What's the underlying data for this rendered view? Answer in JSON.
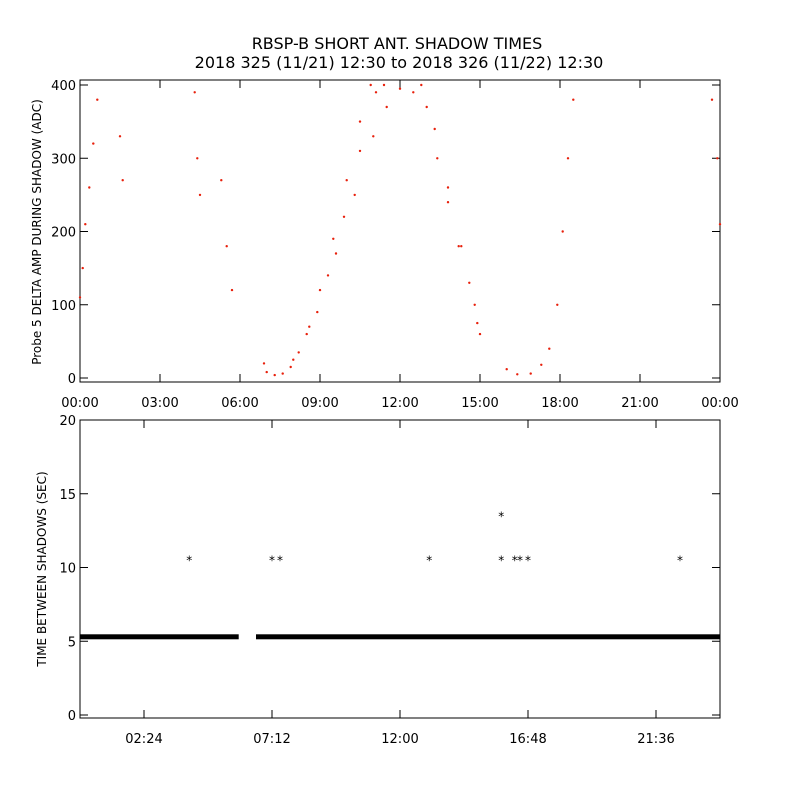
{
  "header": {
    "title_line1": "RBSP-B SHORT ANT. SHADOW TIMES",
    "title_line2": "2018 325 (11/21) 12:30 to 2018 326 (11/22) 12:30"
  },
  "colors": {
    "delta_amp_points": "#e8200c",
    "shadow_interval_marks": "#000000",
    "axes": "#000000"
  },
  "chart_data": [
    {
      "type": "scatter",
      "title": "",
      "xlabel": "",
      "ylabel": "Probe 5 DELTA AMP DURING SHADOW (ADC)",
      "xlim_hours": [
        0,
        24
      ],
      "ylim": [
        0,
        400
      ],
      "x_tick_labels": [
        "00:00",
        "03:00",
        "06:00",
        "09:00",
        "12:00",
        "15:00",
        "18:00",
        "21:00",
        "00:00"
      ],
      "y_tick_labels": [
        "0",
        "100",
        "200",
        "300",
        "400"
      ],
      "grid": false,
      "series": [
        {
          "values": [
            [
              0.0,
              110
            ],
            [
              0.1,
              150
            ],
            [
              0.2,
              210
            ],
            [
              0.35,
              260
            ],
            [
              0.5,
              320
            ],
            [
              0.65,
              380
            ],
            [
              1.5,
              330
            ],
            [
              1.6,
              270
            ],
            [
              4.3,
              390
            ],
            [
              4.4,
              300
            ],
            [
              4.5,
              250
            ],
            [
              5.3,
              270
            ],
            [
              5.5,
              180
            ],
            [
              5.7,
              120
            ],
            [
              6.9,
              20
            ],
            [
              7.0,
              8
            ],
            [
              7.3,
              4
            ],
            [
              7.6,
              6
            ],
            [
              8.0,
              25
            ],
            [
              8.5,
              60
            ],
            [
              9.0,
              120
            ],
            [
              9.5,
              190
            ],
            [
              10.0,
              270
            ],
            [
              10.5,
              350
            ],
            [
              10.9,
              400
            ],
            [
              7.9,
              15
            ],
            [
              8.6,
              70
            ],
            [
              9.3,
              140
            ],
            [
              9.9,
              220
            ],
            [
              10.5,
              310
            ],
            [
              11.1,
              390
            ],
            [
              8.2,
              35
            ],
            [
              8.9,
              90
            ],
            [
              9.6,
              170
            ],
            [
              10.3,
              250
            ],
            [
              11.0,
              330
            ],
            [
              11.4,
              400
            ],
            [
              11.5,
              370
            ],
            [
              12.0,
              395
            ],
            [
              12.5,
              390
            ],
            [
              13.0,
              370
            ],
            [
              13.4,
              300
            ],
            [
              13.8,
              240
            ],
            [
              14.2,
              180
            ],
            [
              14.6,
              130
            ],
            [
              14.9,
              75
            ],
            [
              12.8,
              400
            ],
            [
              13.3,
              340
            ],
            [
              13.8,
              260
            ],
            [
              14.3,
              180
            ],
            [
              14.8,
              100
            ],
            [
              15.0,
              60
            ],
            [
              16.0,
              12
            ],
            [
              16.4,
              5
            ],
            [
              16.9,
              6
            ],
            [
              17.3,
              18
            ],
            [
              17.6,
              40
            ],
            [
              17.9,
              100
            ],
            [
              18.1,
              200
            ],
            [
              18.3,
              300
            ],
            [
              18.5,
              380
            ],
            [
              23.7,
              380
            ],
            [
              23.9,
              300
            ],
            [
              24.0,
              210
            ]
          ]
        }
      ]
    },
    {
      "type": "scatter",
      "title": "",
      "xlabel": "",
      "ylabel": "TIME BETWEEN SHADOWS (SEC)",
      "xlim_hours": [
        0,
        24
      ],
      "ylim": [
        0,
        20
      ],
      "x_tick_labels": [
        "02:24",
        "07:12",
        "12:00",
        "16:48",
        "21:36"
      ],
      "y_tick_labels": [
        "0",
        "5",
        "10",
        "15",
        "20"
      ],
      "grid": false,
      "baseline": {
        "value": 5.3,
        "ranges_hours": [
          [
            0.0,
            5.95
          ],
          [
            6.6,
            24.0
          ]
        ]
      },
      "series": [
        {
          "values": [
            [
              4.1,
              10.6
            ],
            [
              7.2,
              10.6
            ],
            [
              7.5,
              10.6
            ],
            [
              13.1,
              10.6
            ],
            [
              15.8,
              13.6
            ],
            [
              15.8,
              10.6
            ],
            [
              16.3,
              10.6
            ],
            [
              16.5,
              10.6
            ],
            [
              16.8,
              10.6
            ],
            [
              22.5,
              10.6
            ]
          ]
        }
      ]
    }
  ]
}
